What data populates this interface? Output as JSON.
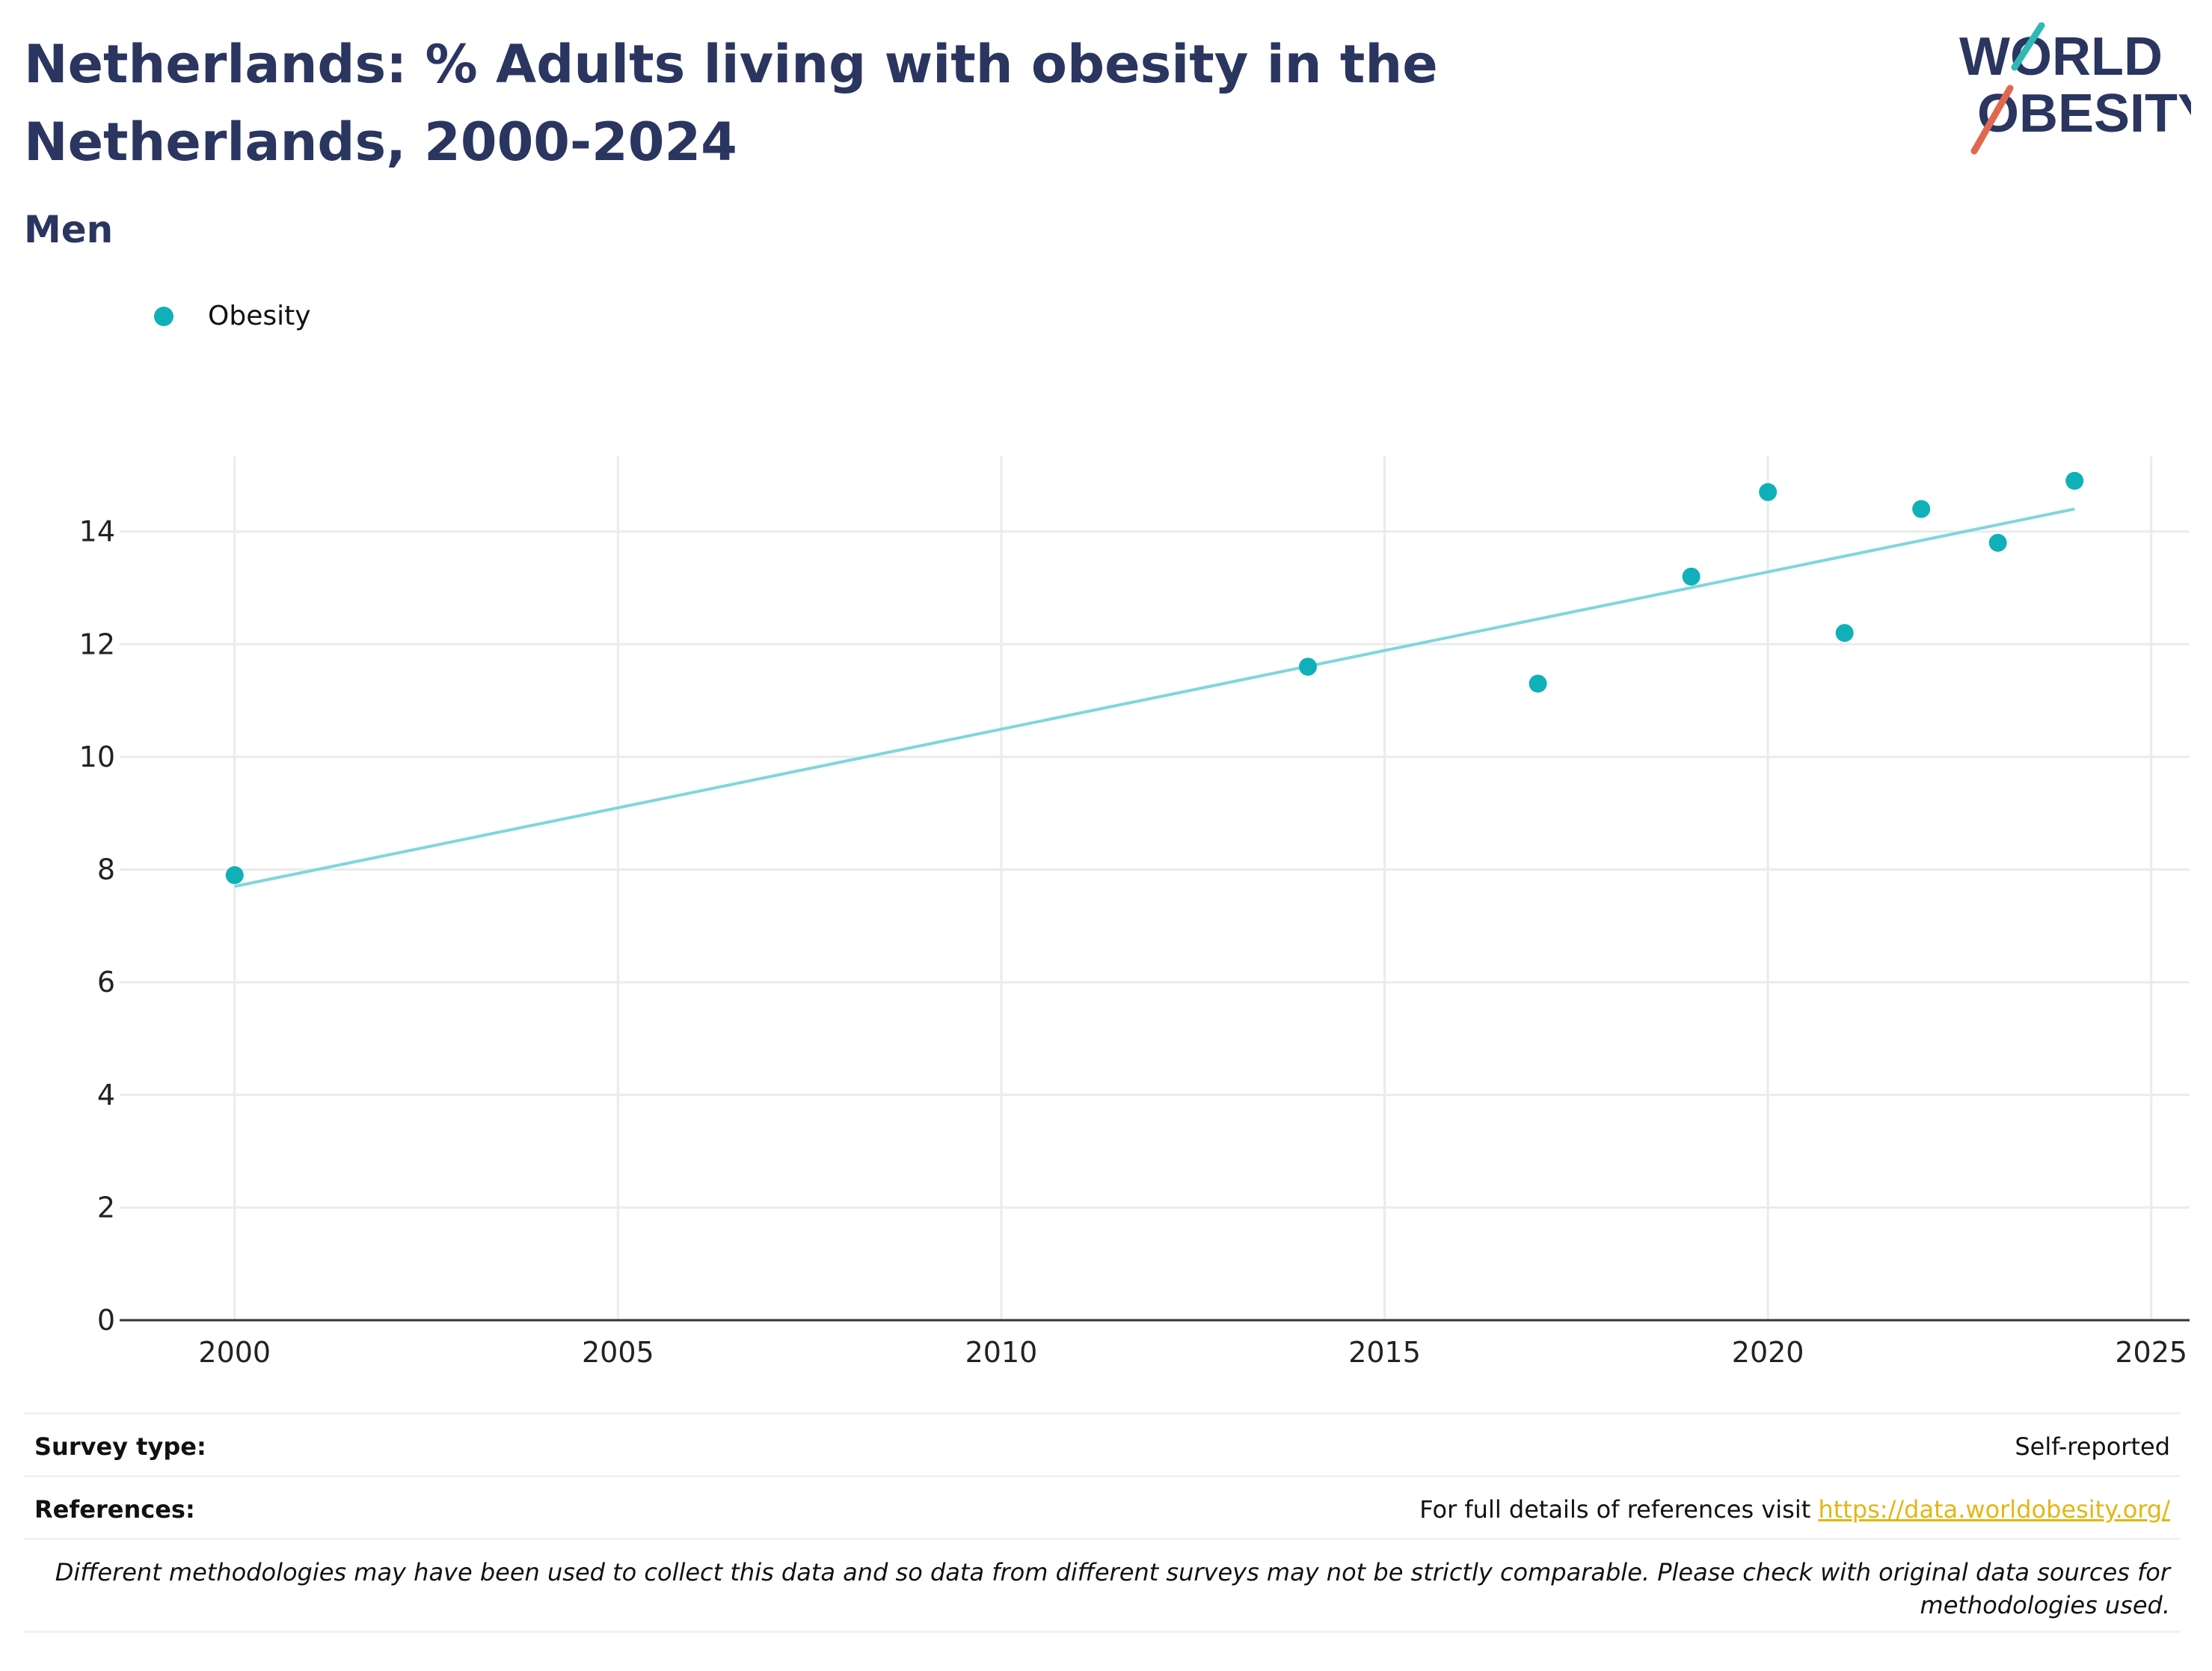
{
  "header": {
    "title": "Netherlands: % Adults living with obesity in the Netherlands, 2000-2024",
    "subtitle": "Men"
  },
  "logo": {
    "line1": "WORLD",
    "line2": "OBESITY"
  },
  "legend": {
    "label": "Obesity"
  },
  "colors": {
    "title": "#2a3560",
    "point": "#0fb0b8",
    "trend": "#7fd6db",
    "grid": "#ebebeb",
    "link": "#e2b613"
  },
  "chart_data": {
    "type": "scatter",
    "series": [
      {
        "name": "Obesity",
        "x": [
          2000,
          2014,
          2017,
          2019,
          2020,
          2021,
          2022,
          2023,
          2024
        ],
        "y": [
          7.9,
          11.6,
          11.3,
          13.2,
          14.7,
          12.2,
          14.4,
          13.8,
          14.9
        ]
      }
    ],
    "trendline": {
      "x": [
        2000,
        2024
      ],
      "y": [
        7.7,
        14.4
      ]
    },
    "xlim": [
      1998.5,
      2025.5
    ],
    "ylim": [
      0,
      16
    ],
    "xticks": [
      "2000",
      "2005",
      "2010",
      "2015",
      "2020",
      "2025"
    ],
    "yticks": [
      "0",
      "2",
      "4",
      "6",
      "8",
      "10",
      "12",
      "14"
    ],
    "grid": true,
    "legend_position": "top-left"
  },
  "footer": {
    "survey_label": "Survey type:",
    "survey_value": "Self-reported",
    "references_label": "References:",
    "references_text": "For full details of references visit",
    "references_link": "https://data.worldobesity.org/",
    "note": "Different methodologies may have been used to collect this data and so data from different surveys may not be strictly comparable. Please check with original data sources for methodologies used."
  }
}
